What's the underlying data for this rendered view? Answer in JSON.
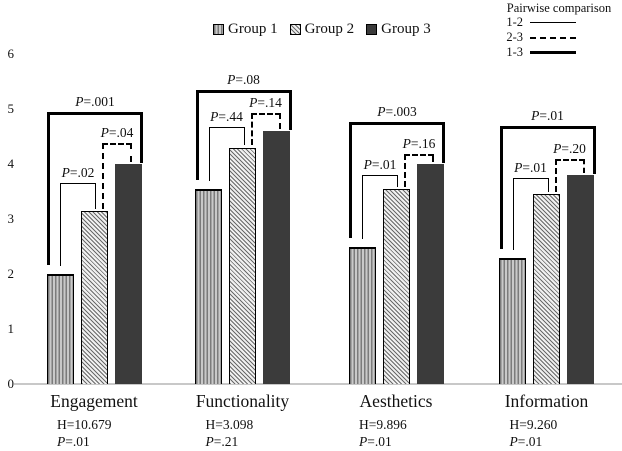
{
  "colors": {
    "background": "#ffffff",
    "bar_group1_stripe": "#7b7b7b",
    "bar_group1_bg": "#c9c9c9",
    "bar_group2_hatch": "#6a6a6a",
    "bar_group2_bg": "#f0f0f0",
    "bar_group3_fill": "#3b3b3b",
    "baseline": "#c8c8c8",
    "line": "#000000",
    "text": "#111111"
  },
  "legend": {
    "items": [
      {
        "label": "Group 1",
        "swatch": "group1-vertical-stripes-swatch"
      },
      {
        "label": "Group 2",
        "swatch": "group2-diagonal-hatch-swatch"
      },
      {
        "label": "Group 3",
        "swatch": "group3-solid-dark-swatch"
      }
    ]
  },
  "pairwise_legend": {
    "title": "Pairwise comparison",
    "items": [
      {
        "label": "1-2",
        "line_style": "thin-solid"
      },
      {
        "label": "2-3",
        "line_style": "dashed"
      },
      {
        "label": "1-3",
        "line_style": "thick-solid"
      }
    ]
  },
  "chart_data": {
    "type": "bar",
    "categories": [
      "Engagement",
      "Functionality",
      "Aesthetics",
      "Information"
    ],
    "series": [
      {
        "name": "Group 1",
        "values": [
          2.0,
          3.55,
          2.5,
          2.3
        ]
      },
      {
        "name": "Group 2",
        "values": [
          3.15,
          4.3,
          3.55,
          3.45
        ]
      },
      {
        "name": "Group 3",
        "values": [
          4.0,
          4.6,
          4.0,
          3.8
        ]
      }
    ],
    "ylim": [
      0,
      6
    ],
    "yticks": [
      0,
      1,
      2,
      3,
      4,
      5,
      6
    ],
    "grid": false,
    "legend_position": "top",
    "category_stats": [
      {
        "h_label": "H=10.679",
        "p_label": "P=.01"
      },
      {
        "h_label": "H=3.098",
        "p_label": "P=.21"
      },
      {
        "h_label": "H=9.896",
        "p_label": "P=.01"
      },
      {
        "h_label": "H=9.260",
        "p_label": "P=.01"
      }
    ],
    "pairwise_comparisons": [
      {
        "category": "Engagement",
        "pair": "1-2",
        "p_label": "P=.02",
        "bracket_top": 3.66
      },
      {
        "category": "Engagement",
        "pair": "2-3",
        "p_label": "P=.04",
        "bracket_top": 4.38
      },
      {
        "category": "Engagement",
        "pair": "1-3",
        "p_label": "P=.001",
        "bracket_top": 4.95
      },
      {
        "category": "Functionality",
        "pair": "1-2",
        "p_label": "P=.44",
        "bracket_top": 4.67
      },
      {
        "category": "Functionality",
        "pair": "2-3",
        "p_label": "P=.14",
        "bracket_top": 4.93
      },
      {
        "category": "Functionality",
        "pair": "1-3",
        "p_label": "P=.08",
        "bracket_top": 5.35
      },
      {
        "category": "Aesthetics",
        "pair": "1-2",
        "p_label": "P=.01",
        "bracket_top": 3.8
      },
      {
        "category": "Aesthetics",
        "pair": "2-3",
        "p_label": "P=.16",
        "bracket_top": 4.18
      },
      {
        "category": "Aesthetics",
        "pair": "1-3",
        "p_label": "P=.003",
        "bracket_top": 4.76
      },
      {
        "category": "Information",
        "pair": "1-2",
        "p_label": "P=.01",
        "bracket_top": 3.75
      },
      {
        "category": "Information",
        "pair": "2-3",
        "p_label": "P=.20",
        "bracket_top": 4.09
      },
      {
        "category": "Information",
        "pair": "1-3",
        "p_label": "P=.01",
        "bracket_top": 4.69
      }
    ]
  }
}
